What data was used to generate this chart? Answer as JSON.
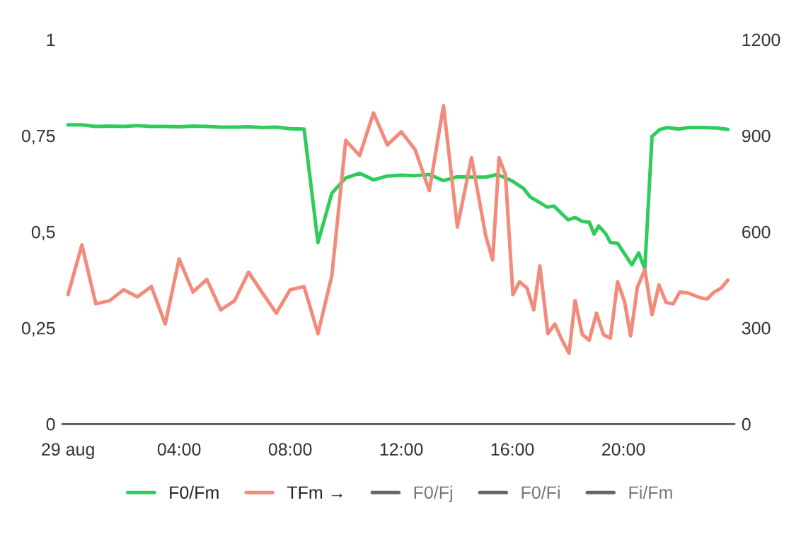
{
  "chart_data": {
    "type": "line",
    "xlim": [
      -0.2,
      24
    ],
    "xticks": [
      {
        "value": 0,
        "label": "29 aug"
      },
      {
        "value": 4,
        "label": "04:00"
      },
      {
        "value": 8,
        "label": "08:00"
      },
      {
        "value": 12,
        "label": "12:00"
      },
      {
        "value": 16,
        "label": "16:00"
      },
      {
        "value": 20,
        "label": "20:00"
      }
    ],
    "ylim": [
      0,
      1
    ],
    "yticks": [
      0,
      {
        "value": 0.25,
        "label": "0,25"
      },
      {
        "value": 0.5,
        "label": "0,5"
      },
      {
        "value": 0.75,
        "label": "0,75"
      },
      1
    ],
    "y2lim": [
      0,
      1200
    ],
    "y2ticks": [
      0,
      300,
      600,
      900,
      1200
    ],
    "grid": false,
    "legend": "bottom",
    "series": [
      {
        "name": "F0/Fm",
        "color": "#2ecc5c",
        "x": [
          0,
          0.5,
          1,
          1.5,
          2,
          2.5,
          3,
          3.5,
          4,
          4.5,
          5,
          5.5,
          6,
          6.5,
          7,
          7.5,
          8,
          8.5,
          9,
          9.5,
          10,
          10.5,
          11,
          11.5,
          12,
          12.5,
          13.01,
          13.52,
          14.02,
          14.53,
          15.04,
          15.47,
          15.97,
          16.4,
          16.65,
          16.99,
          17.25,
          17.5,
          17.75,
          18.01,
          18.26,
          18.52,
          18.77,
          18.94,
          19.11,
          19.37,
          19.53,
          19.79,
          20.3,
          20.55,
          20.77,
          21.03,
          21.31,
          21.57,
          21.99,
          22.33,
          22.84,
          23.35,
          23.76
        ],
        "values": [
          0.778,
          0.778,
          0.774,
          0.775,
          0.774,
          0.776,
          0.774,
          0.774,
          0.773,
          0.775,
          0.774,
          0.772,
          0.772,
          0.773,
          0.771,
          0.772,
          0.768,
          0.767,
          0.472,
          0.6,
          0.64,
          0.652,
          0.635,
          0.645,
          0.647,
          0.646,
          0.649,
          0.633,
          0.643,
          0.642,
          0.642,
          0.649,
          0.633,
          0.613,
          0.59,
          0.576,
          0.564,
          0.567,
          0.549,
          0.531,
          0.537,
          0.527,
          0.525,
          0.494,
          0.515,
          0.494,
          0.472,
          0.47,
          0.414,
          0.445,
          0.404,
          0.748,
          0.766,
          0.771,
          0.767,
          0.771,
          0.771,
          0.77,
          0.766
        ]
      },
      {
        "name": "TFm →",
        "color": "#f28b7a",
        "axis": "y2",
        "x": [
          0,
          0.5,
          1,
          1.5,
          2,
          2.5,
          3,
          3.5,
          4,
          4.5,
          5,
          5.5,
          6,
          6.5,
          7,
          7.5,
          8,
          8.5,
          9,
          9.5,
          10,
          10.5,
          11,
          11.5,
          12,
          12.5,
          13.01,
          13.52,
          14.02,
          14.53,
          15.04,
          15.29,
          15.52,
          15.75,
          16.02,
          16.26,
          16.53,
          16.77,
          16.99,
          17.28,
          17.53,
          17.79,
          18.04,
          18.26,
          18.52,
          18.77,
          19.03,
          19.28,
          19.53,
          19.79,
          20.04,
          20.26,
          20.5,
          20.77,
          21.03,
          21.28,
          21.54,
          21.79,
          22.03,
          22.33,
          22.76,
          23.01,
          23.27,
          23.52,
          23.76
        ],
        "values": [
          404,
          559,
          375,
          385,
          419,
          397,
          429,
          312,
          515,
          412,
          451,
          356,
          385,
          474,
          409,
          346,
          419,
          429,
          282,
          463,
          885,
          838,
          971,
          871,
          912,
          856,
          728,
          993,
          615,
          831,
          588,
          512,
          831,
          779,
          404,
          444,
          424,
          356,
          493,
          282,
          312,
          262,
          221,
          385,
          279,
          262,
          346,
          279,
          268,
          444,
          382,
          275,
          426,
          482,
          341,
          434,
          379,
          375,
          412,
          409,
          394,
          390,
          412,
          424,
          449
        ]
      },
      {
        "name": "F0/Fj",
        "color": "#666666"
      },
      {
        "name": "F0/Fi",
        "color": "#666666"
      },
      {
        "name": "Fi/Fm",
        "color": "#666666"
      }
    ]
  }
}
